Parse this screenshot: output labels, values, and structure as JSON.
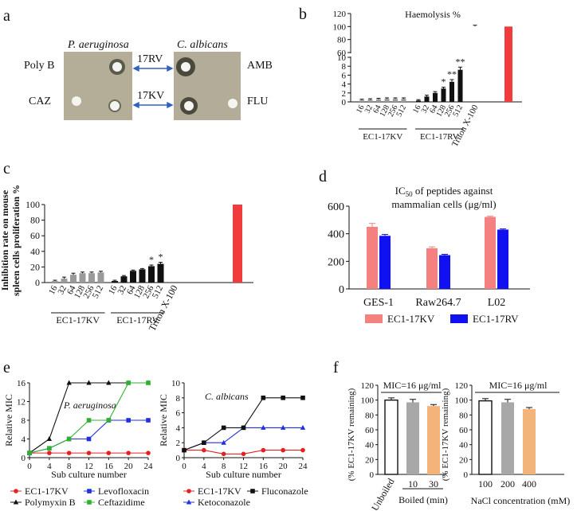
{
  "panels": {
    "a": {
      "label": "a",
      "headers": [
        "P. aeruginosa",
        "C. albicans"
      ],
      "left_labels": [
        "Poly B",
        "CAZ"
      ],
      "right_labels": [
        "AMB",
        "FLU"
      ],
      "mid_labels": [
        "17RV",
        "17KV"
      ]
    },
    "b": {
      "label": "b"
    },
    "c": {
      "label": "c"
    },
    "d": {
      "label": "d"
    },
    "e": {
      "label": "e"
    },
    "f": {
      "label": "f"
    }
  },
  "chart_data": [
    {
      "id": "b",
      "type": "bar",
      "title": "Haemolysis %",
      "ylim": [
        0,
        120
      ],
      "y_axis_break": [
        10,
        60
      ],
      "yticks_lower": [
        0,
        2,
        4,
        6,
        8,
        10
      ],
      "yticks_upper": [
        60,
        80,
        100,
        120
      ],
      "groups": [
        {
          "name": "EC1-17KV",
          "color": "#9a9a9a",
          "categories": [
            "16",
            "32",
            "64",
            "128",
            "256",
            "512"
          ],
          "values": [
            0.4,
            0.5,
            0.6,
            0.7,
            0.7,
            0.7
          ],
          "errors": [
            0.2,
            0.2,
            0.2,
            0.2,
            0.2,
            0.2
          ],
          "sig": [
            "",
            "",
            "",
            "",
            "",
            ""
          ]
        },
        {
          "name": "EC1-17RV",
          "color": "#111111",
          "categories": [
            "16",
            "32",
            "64",
            "128",
            "256",
            "512"
          ],
          "values": [
            0.3,
            1.2,
            2.0,
            3.0,
            4.5,
            7.2
          ],
          "errors": [
            0.2,
            0.3,
            0.3,
            0.3,
            0.5,
            0.6
          ],
          "sig": [
            "",
            "",
            "",
            "*",
            "**",
            "**"
          ]
        },
        {
          "name": "Triton X-100",
          "color": "#f03c3c",
          "categories": [
            "Triton X-100"
          ],
          "values": [
            100
          ],
          "errors": [
            2
          ],
          "sig": [
            ""
          ]
        }
      ]
    },
    {
      "id": "c",
      "type": "bar",
      "ylabel": "Inhibition rate on  mouse spleen cells proliferation %",
      "ylim": [
        0,
        100
      ],
      "yticks": [
        0,
        20,
        40,
        60,
        80,
        100
      ],
      "groups": [
        {
          "name": "EC1-17KV",
          "color": "#9a9a9a",
          "categories": [
            "16",
            "32",
            "64",
            "128",
            "256",
            "512"
          ],
          "values": [
            2,
            5,
            10,
            12,
            12,
            13
          ],
          "errors": [
            1,
            2,
            2,
            1.5,
            1.5,
            1.5
          ],
          "sig": [
            "",
            "",
            "",
            "",
            "",
            ""
          ]
        },
        {
          "name": "EC1-17RV",
          "color": "#111111",
          "categories": [
            "16",
            "32",
            "64",
            "128",
            "256",
            "512"
          ],
          "values": [
            2,
            8,
            15,
            17,
            21,
            24
          ],
          "errors": [
            1,
            1,
            1,
            1,
            1.5,
            2
          ],
          "sig": [
            "",
            "",
            "",
            "",
            "*",
            "*"
          ]
        },
        {
          "name": "Triton X-100",
          "color": "#f03c3c",
          "categories": [
            "Triton X-100"
          ],
          "values": [
            100
          ],
          "errors": [
            0
          ],
          "sig": [
            ""
          ]
        }
      ]
    },
    {
      "id": "d",
      "type": "bar",
      "title_lines": [
        "IC50 of peptides against",
        "mammalian cells (μg/ml)"
      ],
      "ylim": [
        0,
        600
      ],
      "yticks": [
        0,
        200,
        400,
        600
      ],
      "categories": [
        "GES-1",
        "Raw264.7",
        "L02"
      ],
      "series": [
        {
          "name": "EC1-17KV",
          "color": "#f58080",
          "values": [
            450,
            295,
            522
          ],
          "errors": [
            25,
            10,
            5
          ]
        },
        {
          "name": "EC1-17RV",
          "color": "#1010f0",
          "values": [
            385,
            245,
            430
          ],
          "errors": [
            10,
            6,
            5
          ]
        }
      ],
      "legend": "bottom"
    },
    {
      "id": "e1",
      "type": "line",
      "annotation": "P. aeruginosa",
      "xlabel": "Sub  culture number",
      "ylabel": "Relative MIC",
      "xlim": [
        0,
        24
      ],
      "ylim": [
        0,
        16
      ],
      "xticks": [
        0,
        4,
        8,
        12,
        16,
        20,
        24
      ],
      "yticks": [
        0,
        4,
        8,
        12,
        16
      ],
      "x": [
        0,
        4,
        8,
        12,
        16,
        20,
        24
      ],
      "series": [
        {
          "name": "EC1-17KV",
          "color": "#e52020",
          "marker": "circle",
          "values": [
            1,
            1,
            1,
            1,
            1,
            1,
            1
          ]
        },
        {
          "name": "Polymyxin B",
          "color": "#111111",
          "marker": "triangle",
          "values": [
            1,
            4,
            16,
            16,
            16,
            16,
            16
          ]
        },
        {
          "name": "Levofloxacin",
          "color": "#2030e0",
          "marker": "square",
          "values": [
            1,
            2,
            4,
            4,
            8,
            8,
            8
          ]
        },
        {
          "name": "Ceftazidime",
          "color": "#30b030",
          "marker": "square",
          "values": [
            1,
            2,
            4,
            8,
            8,
            16,
            16
          ]
        }
      ]
    },
    {
      "id": "e2",
      "type": "line",
      "annotation": "C. albicans",
      "xlabel": "Sub  culture number",
      "ylabel": "Relative MIC",
      "xlim": [
        0,
        24
      ],
      "ylim": [
        0,
        10
      ],
      "xticks": [
        0,
        4,
        8,
        12,
        16,
        20,
        24
      ],
      "yticks": [
        0,
        2,
        4,
        6,
        8,
        10
      ],
      "x": [
        0,
        4,
        8,
        12,
        16,
        20,
        24
      ],
      "series": [
        {
          "name": "EC1-17KV",
          "color": "#e52020",
          "marker": "circle",
          "values": [
            1,
            1,
            0.5,
            0.5,
            1,
            1,
            1
          ]
        },
        {
          "name": "Ketoconazole",
          "color": "#2030e0",
          "marker": "triangle",
          "values": [
            1,
            2,
            2,
            4,
            4,
            4,
            4
          ]
        },
        {
          "name": "Fluconazole",
          "color": "#111111",
          "marker": "square",
          "values": [
            1,
            2,
            4,
            4,
            8,
            8,
            8
          ]
        }
      ]
    },
    {
      "id": "f1",
      "type": "bar",
      "annotation": "MIC=16 μg/ml",
      "ylabel": "(% EC1-17KV remaining)",
      "ylim": [
        0,
        120
      ],
      "yticks": [
        0,
        20,
        40,
        60,
        80,
        100,
        120
      ],
      "categories": [
        "Unboiled",
        "10",
        "30"
      ],
      "group_label": "Boiled (min)",
      "values": [
        100,
        97,
        92
      ],
      "errors": [
        3,
        4,
        2
      ],
      "colors": [
        "#ffffff",
        "#a8a8a8",
        "#f2b47a"
      ]
    },
    {
      "id": "f2",
      "type": "bar",
      "annotation": "MIC=16 μg/ml",
      "ylabel": "(% EC1-17KV remaining)",
      "ylim": [
        0,
        120
      ],
      "yticks": [
        0,
        20,
        40,
        60,
        80,
        100,
        120
      ],
      "categories": [
        "100",
        "200",
        "400"
      ],
      "group_label": "NaCl concentration (mM)",
      "values": [
        99,
        97,
        88
      ],
      "errors": [
        3,
        4,
        2
      ],
      "colors": [
        "#ffffff",
        "#a8a8a8",
        "#f2b47a"
      ]
    }
  ]
}
